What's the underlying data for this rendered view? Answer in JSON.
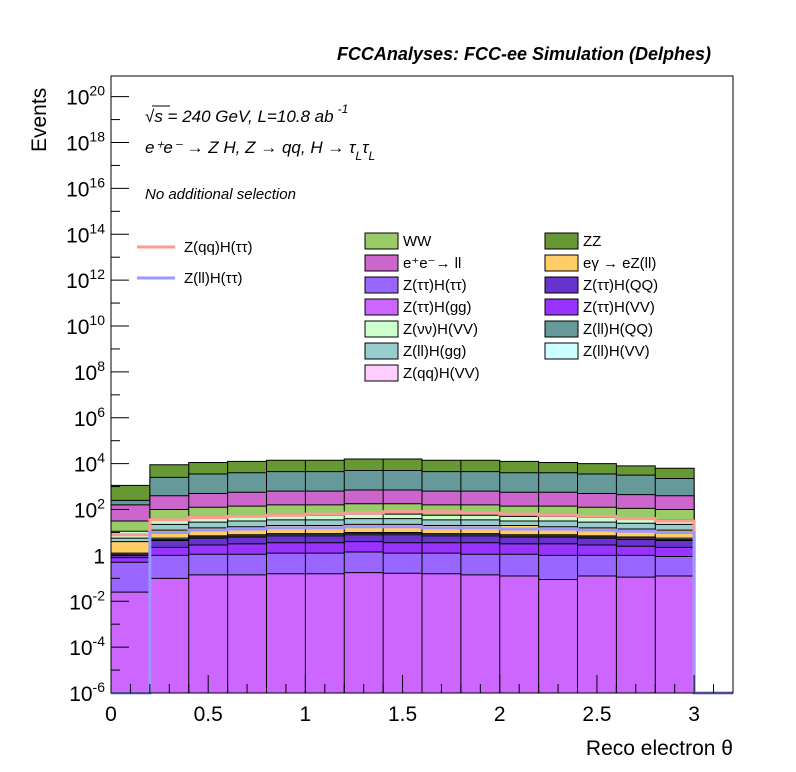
{
  "header": {
    "experiment_label": "FCCAnalyses: FCC-ee Simulation (Delphes)",
    "energy_lumi": "√s = 240 GeV, L=10.8 ab",
    "lumi_exponent": "-1",
    "process": "e⁺e⁻ → Z H, Z → qq, H → τ",
    "process_sub1": "L",
    "process_mid": "τ",
    "process_sub2": "L",
    "selection": "No additional selection"
  },
  "chart_data": {
    "type": "area",
    "title": "",
    "xlabel": "Reco electron θ",
    "ylabel": "Events",
    "xlim": [
      0,
      3.2
    ],
    "ylim_log10": [
      -6,
      20.9
    ],
    "yscale": "log",
    "x_ticks": [
      "0",
      "0.5",
      "1",
      "1.5",
      "2",
      "2.5",
      "3"
    ],
    "y_ticks": [
      {
        "base": "10",
        "exp": "-6"
      },
      {
        "base": "10",
        "exp": "-4"
      },
      {
        "base": "10",
        "exp": "-2"
      },
      {
        "base": "1",
        "exp": ""
      },
      {
        "base": "10",
        "exp": "2"
      },
      {
        "base": "10",
        "exp": "4"
      },
      {
        "base": "10",
        "exp": "6"
      },
      {
        "base": "10",
        "exp": "8"
      },
      {
        "base": "10",
        "exp": "10"
      },
      {
        "base": "10",
        "exp": "12"
      },
      {
        "base": "10",
        "exp": "14"
      },
      {
        "base": "10",
        "exp": "16"
      },
      {
        "base": "10",
        "exp": "18"
      },
      {
        "base": "10",
        "exp": "20"
      }
    ],
    "bin_edges": [
      0,
      0.2,
      0.4,
      0.6,
      0.8,
      1.0,
      1.2,
      1.4,
      1.6,
      1.8,
      2.0,
      2.2,
      2.4,
      2.6,
      2.8,
      3.0,
      3.2
    ],
    "stack_log10_tops": [
      {
        "name": "Z(ττ)H(gg)",
        "color": "#cc66ff",
        "values": [
          -1.6,
          -1.0,
          -0.85,
          -0.85,
          -0.8,
          -0.8,
          -0.75,
          -0.78,
          -0.8,
          -0.85,
          -0.9,
          -1.05,
          -0.9,
          -0.95,
          -0.9,
          -6
        ]
      },
      {
        "name": "Z(ττ)H(ττ)",
        "color": "#9966ff",
        "values": [
          -0.3,
          0.0,
          0.05,
          0.05,
          0.1,
          0.1,
          0.15,
          0.1,
          0.1,
          0.05,
          0.05,
          0.0,
          0.0,
          0.0,
          -0.05,
          -6
        ]
      },
      {
        "name": "Z(ττ)H(VV)",
        "color": "#9933ff",
        "values": [
          -0.1,
          0.35,
          0.45,
          0.5,
          0.55,
          0.55,
          0.6,
          0.55,
          0.55,
          0.55,
          0.5,
          0.5,
          0.45,
          0.4,
          0.35,
          -6
        ]
      },
      {
        "name": "Z(ττ)H(QQ)",
        "color": "#6633cc",
        "values": [
          0.0,
          0.65,
          0.75,
          0.8,
          0.85,
          0.85,
          0.9,
          0.9,
          0.85,
          0.85,
          0.8,
          0.8,
          0.75,
          0.7,
          0.65,
          -6
        ]
      },
      {
        "name": "Z(qq)H(VV)",
        "color": "#ffccff",
        "values": [
          0.05,
          0.7,
          0.8,
          0.85,
          0.9,
          0.9,
          0.95,
          0.95,
          0.9,
          0.9,
          0.85,
          0.85,
          0.8,
          0.75,
          0.7,
          -6
        ]
      },
      {
        "name": "Z(ll)H(VV)",
        "color": "#ccffff",
        "values": [
          0.1,
          0.75,
          0.85,
          0.9,
          0.95,
          0.95,
          1.0,
          1.0,
          0.95,
          0.95,
          0.9,
          0.9,
          0.85,
          0.8,
          0.75,
          -6
        ]
      },
      {
        "name": "eγ → eZ(ll)",
        "color": "#ffcc66",
        "values": [
          0.6,
          1.1,
          1.2,
          1.25,
          1.3,
          1.3,
          1.35,
          1.35,
          1.3,
          1.3,
          1.3,
          1.25,
          1.2,
          1.15,
          1.1,
          -6
        ]
      },
      {
        "name": "Z(ll)H(gg)",
        "color": "#99cccc",
        "values": [
          0.75,
          1.35,
          1.45,
          1.5,
          1.55,
          1.55,
          1.6,
          1.6,
          1.55,
          1.55,
          1.5,
          1.5,
          1.45,
          1.4,
          1.35,
          -6
        ]
      },
      {
        "name": "Z(νν)H(VV)",
        "color": "#ccffcc",
        "values": [
          1.05,
          1.55,
          1.65,
          1.7,
          1.75,
          1.75,
          1.8,
          1.8,
          1.75,
          1.75,
          1.7,
          1.7,
          1.65,
          1.6,
          1.55,
          -6
        ]
      },
      {
        "name": "WW",
        "color": "#99cc66",
        "values": [
          1.5,
          2.0,
          2.1,
          2.15,
          2.2,
          2.2,
          2.25,
          2.25,
          2.2,
          2.2,
          2.15,
          2.15,
          2.1,
          2.05,
          2.0,
          -6
        ]
      },
      {
        "name": "e⁺e⁻→ ll",
        "color": "#cc66cc",
        "values": [
          2.2,
          2.6,
          2.7,
          2.75,
          2.8,
          2.8,
          2.85,
          2.85,
          2.8,
          2.8,
          2.75,
          2.75,
          2.7,
          2.65,
          2.6,
          -6
        ]
      },
      {
        "name": "Z(ll)H(QQ)",
        "color": "#669999",
        "values": [
          2.4,
          3.4,
          3.55,
          3.6,
          3.65,
          3.65,
          3.7,
          3.7,
          3.65,
          3.65,
          3.6,
          3.6,
          3.55,
          3.5,
          3.35,
          -6
        ]
      },
      {
        "name": "ZZ",
        "color": "#669933",
        "values": [
          3.05,
          3.95,
          4.05,
          4.1,
          4.15,
          4.15,
          4.2,
          4.2,
          4.15,
          4.15,
          4.1,
          4.05,
          4.0,
          3.9,
          3.8,
          -6
        ]
      }
    ],
    "signal_lines": [
      {
        "name": "Z(qq)H(ττ)",
        "color": "#ff9999",
        "values": [
          0.9,
          1.55,
          1.65,
          1.7,
          1.75,
          1.8,
          1.85,
          1.9,
          1.9,
          1.85,
          1.8,
          1.75,
          1.7,
          1.6,
          1.5,
          -6
        ]
      },
      {
        "name": "Z(ll)H(ττ)",
        "color": "#9999ff",
        "values": [
          -6,
          1.0,
          1.1,
          1.15,
          1.2,
          1.2,
          1.25,
          1.25,
          1.2,
          1.2,
          1.15,
          1.15,
          1.1,
          1.05,
          1.0,
          -6
        ]
      }
    ],
    "legend": {
      "placement": "top-right",
      "signal_entries": [
        "Z(qq)H(ττ)",
        "Z(ll)H(ττ)"
      ],
      "background_entries": [
        {
          "label": "WW",
          "color": "#99cc66"
        },
        {
          "label": "ZZ",
          "color": "#669933"
        },
        {
          "label": "e⁺e⁻→ ll",
          "color": "#cc66cc"
        },
        {
          "label": "eγ → eZ(ll)",
          "color": "#ffcc66"
        },
        {
          "label": "Z(ττ)H(ττ)",
          "color": "#9966ff"
        },
        {
          "label": "Z(ττ)H(QQ)",
          "color": "#6633cc"
        },
        {
          "label": "Z(ττ)H(gg)",
          "color": "#cc66ff"
        },
        {
          "label": "Z(ττ)H(VV)",
          "color": "#9933ff"
        },
        {
          "label": "Z(νν)H(VV)",
          "color": "#ccffcc"
        },
        {
          "label": "Z(ll)H(QQ)",
          "color": "#669999"
        },
        {
          "label": "Z(ll)H(gg)",
          "color": "#99cccc"
        },
        {
          "label": "Z(ll)H(VV)",
          "color": "#ccffff"
        },
        {
          "label": "Z(qq)H(VV)",
          "color": "#ffccff"
        }
      ]
    }
  }
}
